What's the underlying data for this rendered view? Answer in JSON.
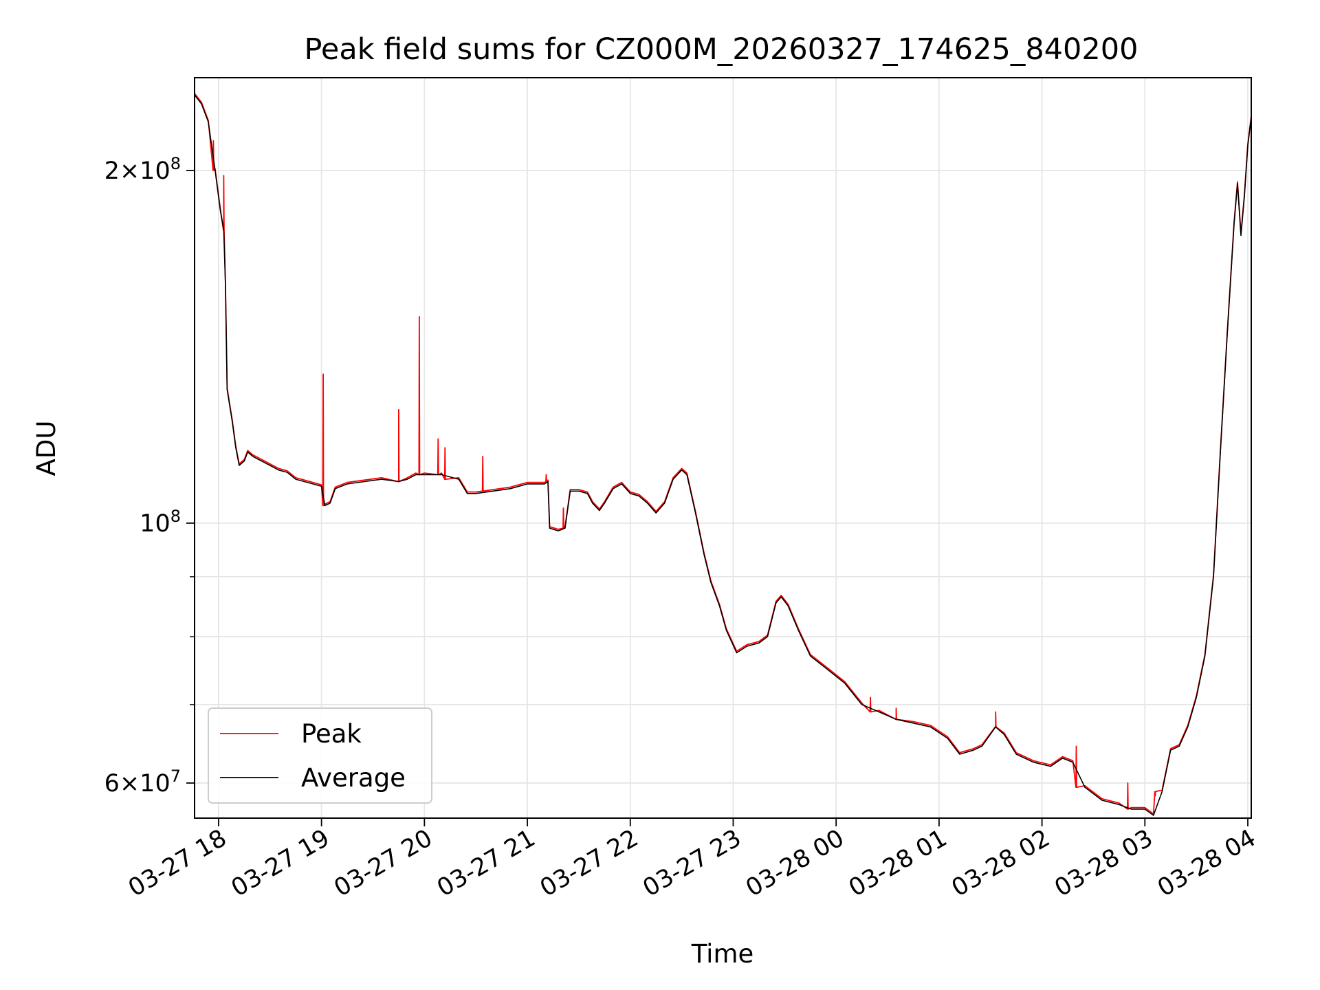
{
  "chart_data": {
    "type": "line",
    "title": "Peak field sums for CZ000M_20260327_174625_840200",
    "xlabel": "Time",
    "ylabel": "ADU",
    "y_scale": "log",
    "ylim": [
      56000000,
      240000000
    ],
    "xlim": [
      "2026-03-27 17:46",
      "2026-03-28 04:02"
    ],
    "grid": true,
    "legend_position": "lower-left",
    "x_ticks": [
      {
        "t": "2026-03-27 18:00",
        "label": "03-27 18"
      },
      {
        "t": "2026-03-27 19:00",
        "label": "03-27 19"
      },
      {
        "t": "2026-03-27 20:00",
        "label": "03-27 20"
      },
      {
        "t": "2026-03-27 21:00",
        "label": "03-27 21"
      },
      {
        "t": "2026-03-27 22:00",
        "label": "03-27 22"
      },
      {
        "t": "2026-03-27 23:00",
        "label": "03-27 23"
      },
      {
        "t": "2026-03-28 00:00",
        "label": "03-28 00"
      },
      {
        "t": "2026-03-28 01:00",
        "label": "03-28 01"
      },
      {
        "t": "2026-03-28 02:00",
        "label": "03-28 02"
      },
      {
        "t": "2026-03-28 03:00",
        "label": "03-28 03"
      },
      {
        "t": "2026-03-28 04:00",
        "label": "03-28 04"
      }
    ],
    "y_major_ticks": [
      {
        "value": 60000000,
        "base": "6",
        "exp": "7",
        "has_mantissa": true
      },
      {
        "value": 100000000,
        "base": "10",
        "exp": "8",
        "has_mantissa": false
      },
      {
        "value": 200000000,
        "base": "2",
        "exp": "8",
        "has_mantissa": true
      }
    ],
    "y_minor_ticks": [
      70000000,
      80000000,
      90000000
    ],
    "series": [
      {
        "name": "Average",
        "color": "#000000",
        "points": [
          [
            "2026-03-27 17:46",
            232000000
          ],
          [
            "2026-03-27 17:50",
            228000000
          ],
          [
            "2026-03-27 17:54",
            220000000
          ],
          [
            "2026-03-27 17:58",
            200000000
          ],
          [
            "2026-03-27 18:01",
            185000000
          ],
          [
            "2026-03-27 18:03",
            178000000
          ],
          [
            "2026-03-27 18:04",
            160000000
          ],
          [
            "2026-03-27 18:05",
            130000000
          ],
          [
            "2026-03-27 18:08",
            122000000
          ],
          [
            "2026-03-27 18:10",
            116000000
          ],
          [
            "2026-03-27 18:12",
            112000000
          ],
          [
            "2026-03-27 18:15",
            113000000
          ],
          [
            "2026-03-27 18:17",
            115000000
          ],
          [
            "2026-03-27 18:20",
            114000000
          ],
          [
            "2026-03-27 18:25",
            113000000
          ],
          [
            "2026-03-27 18:30",
            112000000
          ],
          [
            "2026-03-27 18:35",
            111000000
          ],
          [
            "2026-03-27 18:40",
            110500000
          ],
          [
            "2026-03-27 18:45",
            109000000
          ],
          [
            "2026-03-27 18:50",
            108500000
          ],
          [
            "2026-03-27 18:55",
            108000000
          ],
          [
            "2026-03-27 19:00",
            107500000
          ],
          [
            "2026-03-27 19:02",
            103500000
          ],
          [
            "2026-03-27 19:05",
            104000000
          ],
          [
            "2026-03-27 19:08",
            107000000
          ],
          [
            "2026-03-27 19:15",
            108000000
          ],
          [
            "2026-03-27 19:25",
            108500000
          ],
          [
            "2026-03-27 19:35",
            109000000
          ],
          [
            "2026-03-27 19:45",
            108500000
          ],
          [
            "2026-03-27 19:50",
            109000000
          ],
          [
            "2026-03-27 19:55",
            110000000
          ],
          [
            "2026-03-27 20:00",
            110000000
          ],
          [
            "2026-03-27 20:10",
            110000000
          ],
          [
            "2026-03-27 20:20",
            109000000
          ],
          [
            "2026-03-27 20:25",
            106000000
          ],
          [
            "2026-03-27 20:30",
            106000000
          ],
          [
            "2026-03-27 20:40",
            106500000
          ],
          [
            "2026-03-27 20:50",
            107000000
          ],
          [
            "2026-03-27 21:00",
            108000000
          ],
          [
            "2026-03-27 21:10",
            108000000
          ],
          [
            "2026-03-27 21:12",
            108500000
          ],
          [
            "2026-03-27 21:13",
            99000000
          ],
          [
            "2026-03-27 21:18",
            98500000
          ],
          [
            "2026-03-27 21:22",
            99000000
          ],
          [
            "2026-03-27 21:25",
            106500000
          ],
          [
            "2026-03-27 21:30",
            106500000
          ],
          [
            "2026-03-27 21:35",
            106000000
          ],
          [
            "2026-03-27 21:38",
            104000000
          ],
          [
            "2026-03-27 21:42",
            102500000
          ],
          [
            "2026-03-27 21:45",
            104000000
          ],
          [
            "2026-03-27 21:50",
            107000000
          ],
          [
            "2026-03-27 21:55",
            108000000
          ],
          [
            "2026-03-27 22:00",
            106000000
          ],
          [
            "2026-03-27 22:05",
            105500000
          ],
          [
            "2026-03-27 22:10",
            104000000
          ],
          [
            "2026-03-27 22:15",
            102000000
          ],
          [
            "2026-03-27 22:20",
            104000000
          ],
          [
            "2026-03-27 22:25",
            109000000
          ],
          [
            "2026-03-27 22:30",
            111000000
          ],
          [
            "2026-03-27 22:33",
            110000000
          ],
          [
            "2026-03-27 22:38",
            102000000
          ],
          [
            "2026-03-27 22:43",
            94000000
          ],
          [
            "2026-03-27 22:47",
            89000000
          ],
          [
            "2026-03-27 22:52",
            85000000
          ],
          [
            "2026-03-27 22:56",
            81000000
          ],
          [
            "2026-03-27 23:02",
            77500000
          ],
          [
            "2026-03-27 23:08",
            78500000
          ],
          [
            "2026-03-27 23:15",
            79000000
          ],
          [
            "2026-03-27 23:20",
            80000000
          ],
          [
            "2026-03-27 23:25",
            85500000
          ],
          [
            "2026-03-27 23:28",
            86500000
          ],
          [
            "2026-03-27 23:32",
            85000000
          ],
          [
            "2026-03-27 23:38",
            81000000
          ],
          [
            "2026-03-27 23:45",
            77000000
          ],
          [
            "2026-03-27 23:55",
            75000000
          ],
          [
            "2026-03-28 00:05",
            73000000
          ],
          [
            "2026-03-28 00:15",
            70000000
          ],
          [
            "2026-03-28 00:25",
            69000000
          ],
          [
            "2026-03-28 00:35",
            68000000
          ],
          [
            "2026-03-28 00:45",
            67500000
          ],
          [
            "2026-03-28 00:55",
            67000000
          ],
          [
            "2026-03-28 01:05",
            65500000
          ],
          [
            "2026-03-28 01:12",
            63500000
          ],
          [
            "2026-03-28 01:20",
            64000000
          ],
          [
            "2026-03-28 01:25",
            64500000
          ],
          [
            "2026-03-28 01:33",
            67000000
          ],
          [
            "2026-03-28 01:38",
            66000000
          ],
          [
            "2026-03-28 01:45",
            63500000
          ],
          [
            "2026-03-28 01:55",
            62500000
          ],
          [
            "2026-03-28 02:05",
            62000000
          ],
          [
            "2026-03-28 02:12",
            63000000
          ],
          [
            "2026-03-28 02:18",
            62500000
          ],
          [
            "2026-03-28 02:25",
            59500000
          ],
          [
            "2026-03-28 02:35",
            58000000
          ],
          [
            "2026-03-28 02:45",
            57500000
          ],
          [
            "2026-03-28 02:52",
            57000000
          ],
          [
            "2026-03-28 03:00",
            57000000
          ],
          [
            "2026-03-28 03:05",
            56300000
          ],
          [
            "2026-03-28 03:10",
            59000000
          ],
          [
            "2026-03-28 03:15",
            64000000
          ],
          [
            "2026-03-28 03:20",
            64500000
          ],
          [
            "2026-03-28 03:25",
            67000000
          ],
          [
            "2026-03-28 03:30",
            71000000
          ],
          [
            "2026-03-28 03:35",
            77000000
          ],
          [
            "2026-03-28 03:40",
            90000000
          ],
          [
            "2026-03-28 03:44",
            115000000
          ],
          [
            "2026-03-28 03:48",
            145000000
          ],
          [
            "2026-03-28 03:52",
            180000000
          ],
          [
            "2026-03-28 03:54",
            195000000
          ],
          [
            "2026-03-28 03:56",
            176000000
          ],
          [
            "2026-03-28 03:58",
            190000000
          ],
          [
            "2026-03-28 04:00",
            210000000
          ],
          [
            "2026-03-28 04:02",
            222000000
          ]
        ]
      },
      {
        "name": "Peak",
        "color": "#ff0000",
        "spikes": [
          [
            "2026-03-27 17:57",
            212000000
          ],
          [
            "2026-03-27 18:03",
            198000000
          ],
          [
            "2026-03-27 19:01",
            134000000
          ],
          [
            "2026-03-27 19:45",
            125000000
          ],
          [
            "2026-03-27 19:57",
            150000000
          ],
          [
            "2026-03-27 20:08",
            118000000
          ],
          [
            "2026-03-27 20:12",
            116000000
          ],
          [
            "2026-03-27 20:34",
            114000000
          ],
          [
            "2026-03-27 21:11",
            110000000
          ],
          [
            "2026-03-27 21:21",
            103000000
          ],
          [
            "2026-03-28 00:20",
            71000000
          ],
          [
            "2026-03-28 00:35",
            69500000
          ],
          [
            "2026-03-28 01:33",
            69000000
          ],
          [
            "2026-03-28 02:20",
            64500000
          ],
          [
            "2026-03-28 02:50",
            60000000
          ],
          [
            "2026-03-28 03:06",
            58500000
          ]
        ]
      }
    ]
  }
}
